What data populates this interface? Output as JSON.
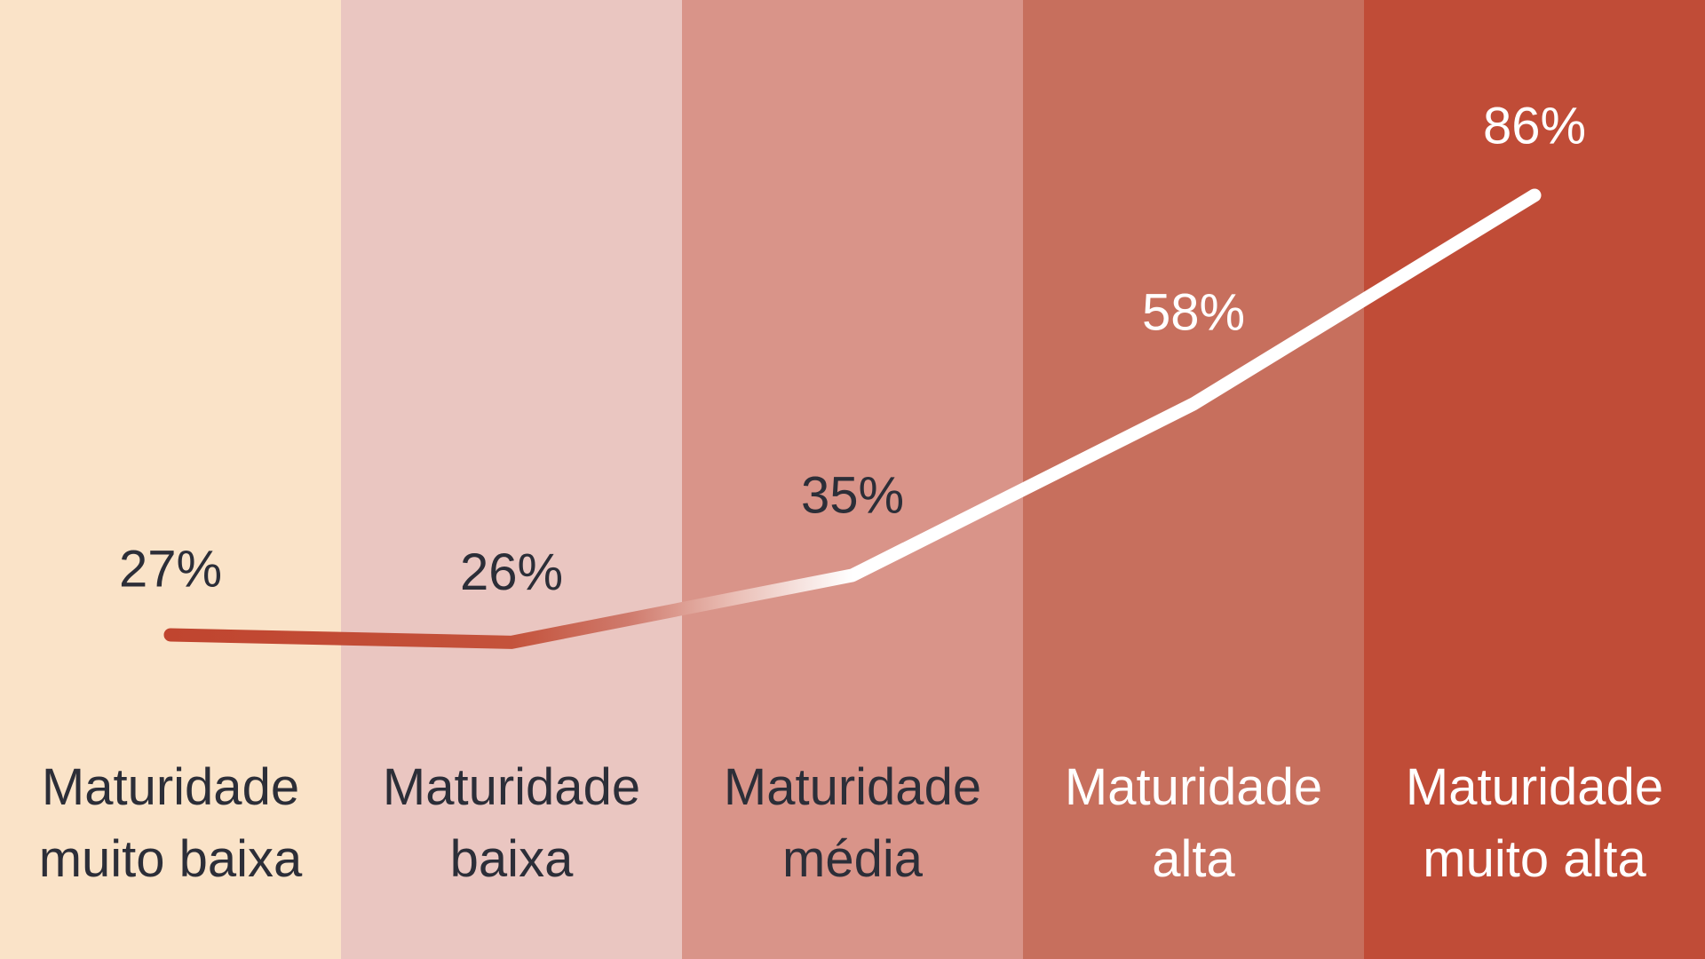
{
  "chart_data": {
    "type": "line",
    "categories": [
      "Maturidade muito baixa",
      "Maturidade baixa",
      "Maturidade média",
      "Maturidade alta",
      "Maturidade muito alta"
    ],
    "category_lines": [
      [
        "Maturidade",
        "muito baixa"
      ],
      [
        "Maturidade",
        "baixa"
      ],
      [
        "Maturidade",
        "média"
      ],
      [
        "Maturidade",
        "alta"
      ],
      [
        "Maturidade",
        "muito alta"
      ]
    ],
    "values": [
      27,
      26,
      35,
      58,
      86
    ],
    "value_labels": [
      "27%",
      "26%",
      "35%",
      "58%",
      "86%"
    ],
    "title": "",
    "xlabel": "",
    "ylabel": "",
    "ylim": [
      0,
      100
    ],
    "grid": false,
    "legend": "none",
    "band_colors": [
      "#FAE3C8",
      "#EAC6C1",
      "#D99489",
      "#C76F5D",
      "#C04C37"
    ],
    "label_colors": [
      "#2C2E38",
      "#2C2E38",
      "#2C2E38",
      "#FFFFFF",
      "#FFFFFF"
    ],
    "line_gradient_colors": [
      "#C0452F",
      "#C4523B",
      "#CF7A6C",
      "#E9BCB3",
      "#FFFFFF"
    ],
    "label_offsets": [
      74,
      79,
      90,
      103,
      78
    ]
  }
}
